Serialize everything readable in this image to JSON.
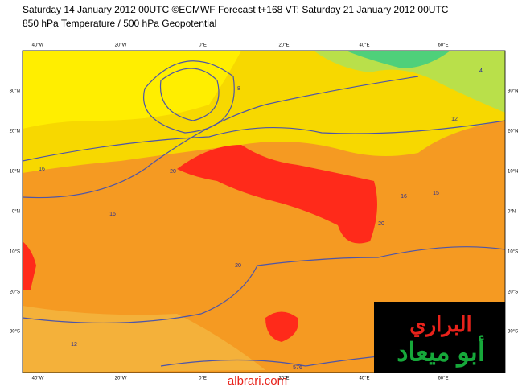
{
  "header": {
    "line1": "Saturday 14 January 2012 00UTC ©ECMWF Forecast t+168 VT: Saturday 21 January 2012 00UTC",
    "line2": "850 hPa Temperature / 500 hPa Geopotential"
  },
  "map": {
    "lon_labels": [
      "40°W",
      "20°W",
      "0°E",
      "20°E",
      "40°E",
      "60°E"
    ],
    "lat_labels": [
      "30°N",
      "20°N",
      "10°N",
      "0°N",
      "10°S",
      "20°S",
      "30°S"
    ],
    "contour_labels": [
      "16",
      "16",
      "20",
      "20",
      "16",
      "15",
      "20",
      "12",
      "576",
      "12",
      "8",
      "4"
    ]
  },
  "watermark": {
    "line1": "البراري",
    "line2": "أبو ميعاد",
    "url": "albrari.com"
  }
}
